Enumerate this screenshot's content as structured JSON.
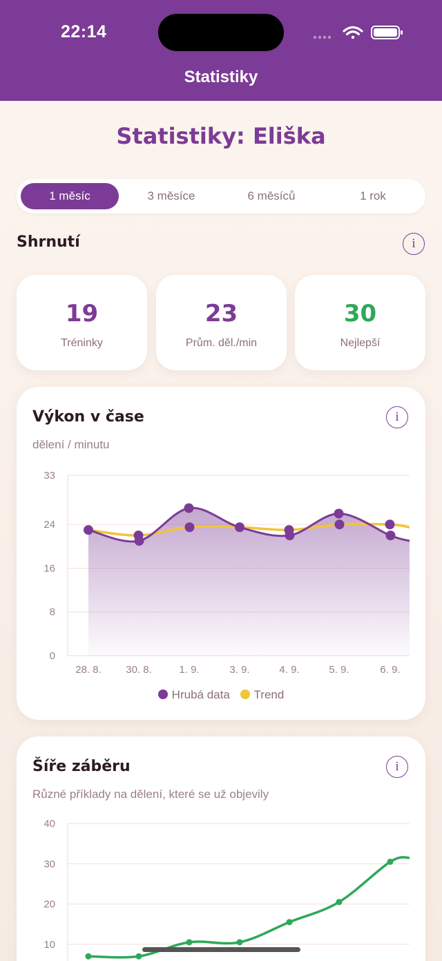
{
  "status": {
    "time": "22:14"
  },
  "nav": {
    "title": "Statistiky"
  },
  "page": {
    "title": "Statistiky: Eliška"
  },
  "ranges": [
    {
      "label": "1 měsíc",
      "active": true
    },
    {
      "label": "3 měsíce",
      "active": false
    },
    {
      "label": "6 měsíců",
      "active": false
    },
    {
      "label": "1 rok",
      "active": false
    }
  ],
  "summary": {
    "title": "Shrnutí",
    "info": "i",
    "cards": [
      {
        "value": "19",
        "label": "Tréninky",
        "color": "#7c3b96"
      },
      {
        "value": "23",
        "label": "Prům. děl./min",
        "color": "#7c3b96"
      },
      {
        "value": "30",
        "label": "Nejlepší",
        "color": "#2ea85a"
      }
    ]
  },
  "performance": {
    "title": "Výkon v čase",
    "subtitle": "dělení / minutu",
    "info": "i",
    "legend": {
      "raw": "Hrubá data",
      "trend": "Trend"
    }
  },
  "breadth": {
    "title": "Šíře záběru",
    "subtitle": "Různé příklady na dělení, které se už objevily",
    "info": "i"
  },
  "colors": {
    "accent": "#7c3b96",
    "trend": "#f0c53a",
    "green": "#2ea85a"
  },
  "chart_data": [
    {
      "type": "line",
      "title": "Výkon v čase",
      "ylabel": "dělení / minutu",
      "ylim": [
        0,
        33
      ],
      "yticks": [
        0,
        8,
        16,
        24,
        33
      ],
      "xticks": [
        "28. 8.",
        "30. 8.",
        "1. 9.",
        "3. 9.",
        "4. 9.",
        "5. 9.",
        "6. 9."
      ],
      "x": [
        0,
        1,
        1,
        2,
        2,
        3,
        4,
        4,
        5,
        5,
        6,
        6
      ],
      "series": [
        {
          "name": "Hrubá data",
          "color": "#7c3b96",
          "values": [
            23,
            22,
            21,
            27,
            23.5,
            23.5,
            23,
            22,
            26,
            24,
            24,
            22
          ]
        },
        {
          "name": "Trend",
          "color": "#f0c53a",
          "values": [
            23,
            22,
            22,
            23.5,
            23.5,
            23.5,
            23,
            23,
            24,
            24,
            24,
            24
          ]
        }
      ],
      "grid": true,
      "legend": "bottom"
    },
    {
      "type": "line",
      "title": "Šíře záběru",
      "ylim": [
        0,
        40
      ],
      "yticks": [
        10,
        20,
        30,
        40
      ],
      "x": [
        0,
        1,
        2,
        3,
        4,
        5,
        6,
        7
      ],
      "series": [
        {
          "color": "#2ea85a",
          "values": [
            7,
            7,
            10.5,
            10.5,
            15.5,
            20.5,
            30.5,
            31.5
          ]
        }
      ],
      "grid": true
    }
  ]
}
